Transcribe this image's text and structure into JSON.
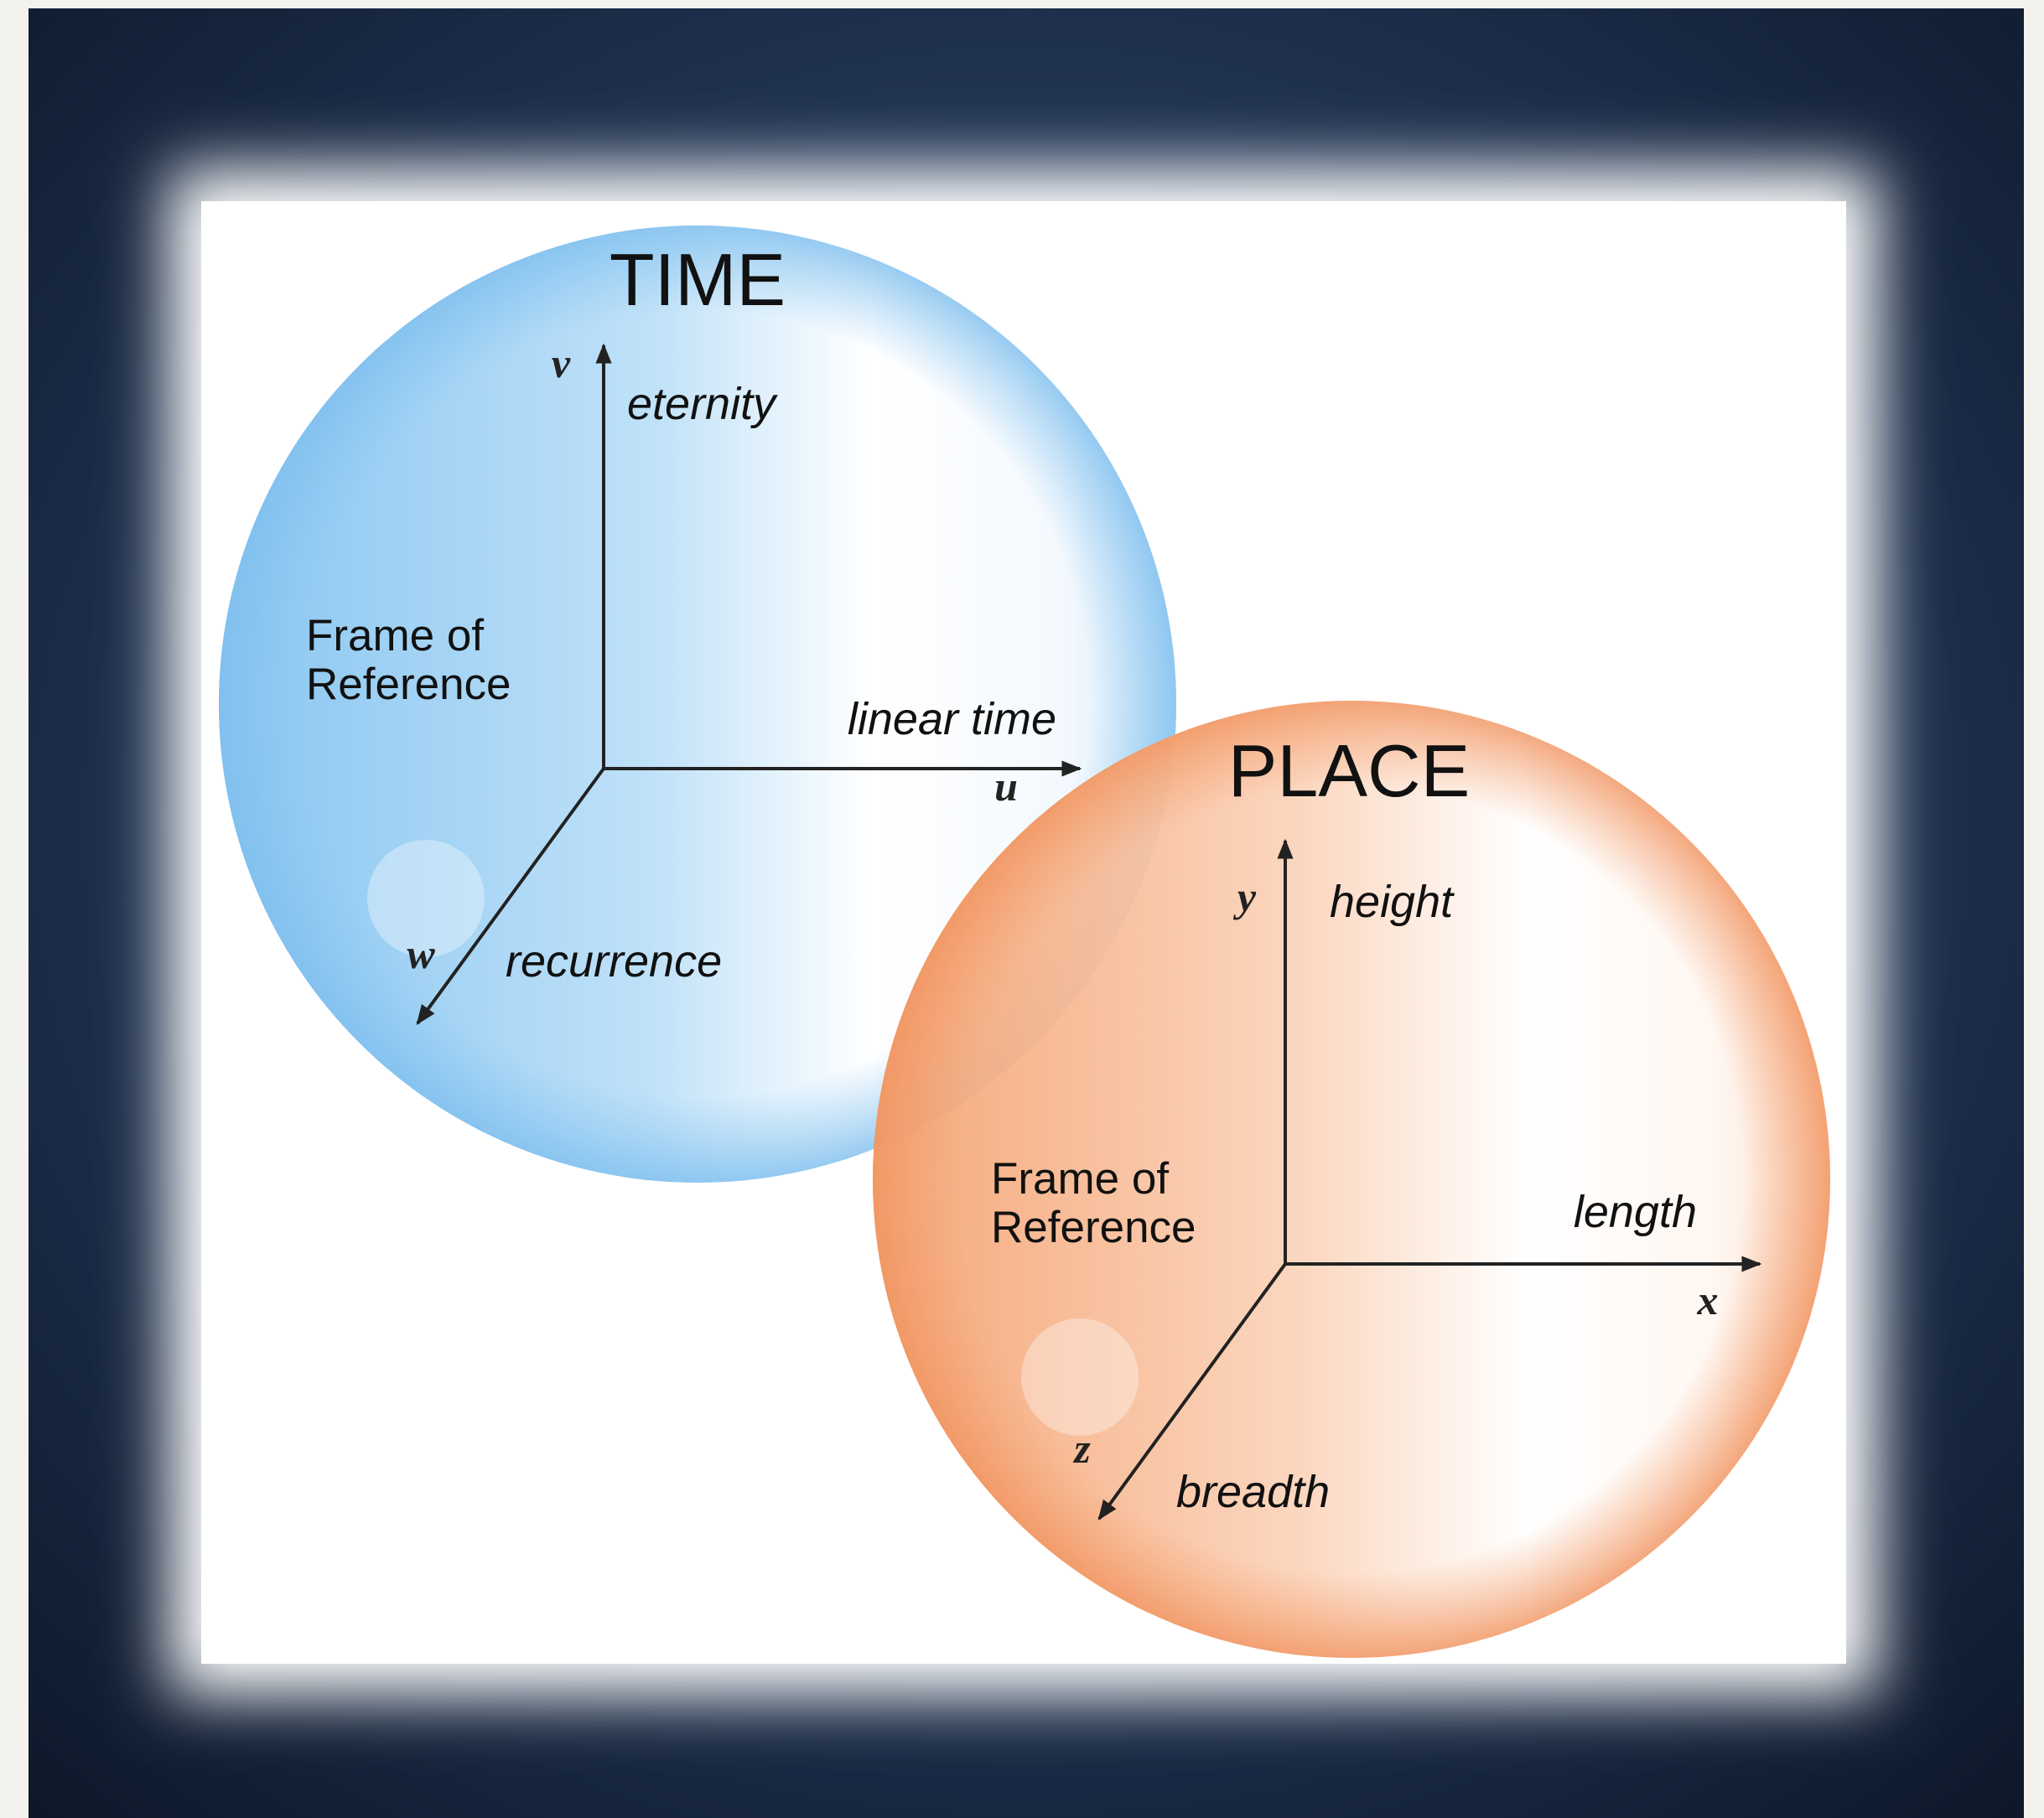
{
  "spheres": [
    {
      "title": "TIME",
      "frame_label": [
        "Frame of",
        "Reference"
      ],
      "axes": [
        {
          "symbol": "v",
          "label": "eternity"
        },
        {
          "symbol": "u",
          "label": "linear time"
        },
        {
          "symbol": "w",
          "label": "recurrence"
        }
      ]
    },
    {
      "title": "PLACE",
      "frame_label": [
        "Frame of",
        "Reference"
      ],
      "axes": [
        {
          "symbol": "y",
          "label": "height"
        },
        {
          "symbol": "x",
          "label": "length"
        },
        {
          "symbol": "z",
          "label": "breadth"
        }
      ]
    }
  ]
}
